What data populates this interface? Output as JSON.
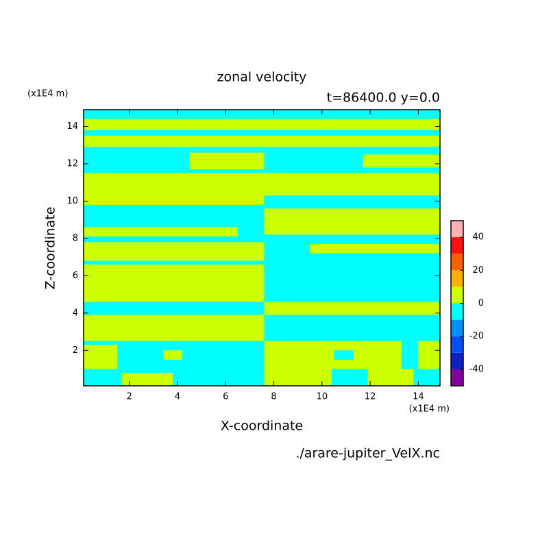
{
  "chart_data": {
    "type": "contour",
    "title": "zonal velocity",
    "subtitle": "t=86400.0 y=0.0",
    "x_label": "X-coordinate",
    "y_label": "Z-coordinate",
    "x_unit": "(x1E4 m)",
    "y_unit": "(x1E4 m)",
    "file": "./arare-jupiter_VelX.nc",
    "xlim": [
      0.1,
      14.9
    ],
    "ylim": [
      0.1,
      14.9
    ],
    "xticks": [
      2,
      4,
      6,
      8,
      10,
      12,
      14
    ],
    "yticks": [
      2,
      4,
      6,
      8,
      10,
      12,
      14
    ],
    "levels": [
      -50,
      -40,
      -30,
      -20,
      -10,
      0,
      10,
      20,
      30,
      40,
      50
    ],
    "colors": [
      "#8000a0",
      "#1020c0",
      "#0050f0",
      "#0090ff",
      "#00ffff",
      "#ccff00",
      "#ffb000",
      "#ff6000",
      "#ff1010",
      "#ffb0b0"
    ],
    "colorbar_ticks": [
      -40,
      -20,
      0,
      20,
      40
    ],
    "cells": [
      {
        "x0": 0.1,
        "x1": 14.9,
        "z0": 0.1,
        "z1": 14.9,
        "value": -5
      },
      {
        "x0": 1.7,
        "x1": 3.8,
        "z0": 0.1,
        "z1": 0.8,
        "value": 5
      },
      {
        "x0": 0.1,
        "x1": 1.5,
        "z0": 1.0,
        "z1": 2.3,
        "value": 5
      },
      {
        "x0": 3.4,
        "x1": 4.2,
        "z0": 1.5,
        "z1": 2.0,
        "value": 5
      },
      {
        "x0": 0.1,
        "x1": 7.6,
        "z0": 2.5,
        "z1": 3.9,
        "value": 5
      },
      {
        "x0": 0.1,
        "x1": 7.6,
        "z0": 4.6,
        "z1": 6.6,
        "value": 5
      },
      {
        "x0": 0.1,
        "x1": 7.6,
        "z0": 6.8,
        "z1": 7.8,
        "value": 5
      },
      {
        "x0": 0.1,
        "x1": 6.5,
        "z0": 8.1,
        "z1": 8.6,
        "value": 5
      },
      {
        "x0": 0.1,
        "x1": 7.6,
        "z0": 9.8,
        "z1": 11.5,
        "value": 5
      },
      {
        "x0": 4.5,
        "x1": 7.6,
        "z0": 11.7,
        "z1": 12.6,
        "value": 5
      },
      {
        "x0": 0.1,
        "x1": 14.9,
        "z0": 12.9,
        "z1": 13.5,
        "value": 5
      },
      {
        "x0": 0.1,
        "x1": 14.9,
        "z0": 13.8,
        "z1": 14.4,
        "value": 5
      },
      {
        "x0": 7.6,
        "x1": 10.4,
        "z0": 0.1,
        "z1": 1.0,
        "value": 5
      },
      {
        "x0": 11.9,
        "x1": 13.8,
        "z0": 0.1,
        "z1": 1.0,
        "value": 5
      },
      {
        "x0": 7.6,
        "x1": 13.3,
        "z0": 1.0,
        "z1": 2.5,
        "value": 5
      },
      {
        "x0": 14.0,
        "x1": 14.9,
        "z0": 1.0,
        "z1": 2.5,
        "value": 5
      },
      {
        "x0": 10.5,
        "x1": 11.3,
        "z0": 1.5,
        "z1": 2.0,
        "value": -5
      },
      {
        "x0": 7.6,
        "x1": 14.9,
        "z0": 3.9,
        "z1": 4.6,
        "value": 5
      },
      {
        "x0": 9.5,
        "x1": 14.9,
        "z0": 7.2,
        "z1": 7.7,
        "value": 5
      },
      {
        "x0": 7.6,
        "x1": 14.9,
        "z0": 8.2,
        "z1": 9.6,
        "value": 5
      },
      {
        "x0": 7.6,
        "x1": 14.9,
        "z0": 10.3,
        "z1": 11.5,
        "value": 5
      },
      {
        "x0": 11.7,
        "x1": 14.9,
        "z0": 11.8,
        "z1": 12.5,
        "value": 5
      }
    ]
  }
}
